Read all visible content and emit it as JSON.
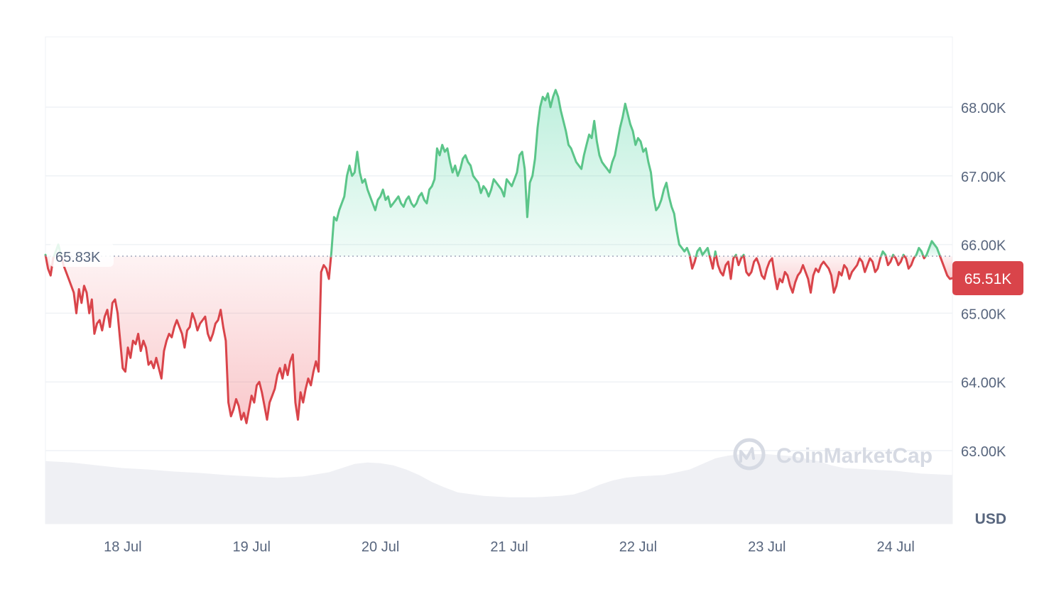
{
  "chart_data": {
    "type": "area",
    "currency_label": "USD",
    "watermark": "CoinMarketCap",
    "x_labels": [
      "18 Jul",
      "19 Jul",
      "20 Jul",
      "21 Jul",
      "22 Jul",
      "23 Jul",
      "24 Jul"
    ],
    "x_label_day_offsets": [
      0.6,
      1.6,
      2.6,
      3.6,
      4.6,
      5.6,
      6.6
    ],
    "y_ticks": [
      63000,
      64000,
      65000,
      66000,
      67000,
      68000
    ],
    "y_tick_labels": [
      "63.00K",
      "64.00K",
      "65.00K",
      "66.00K",
      "67.00K",
      "68.00K"
    ],
    "ylim": [
      62000,
      69000
    ],
    "x_range_days": [
      0,
      7.04
    ],
    "reference": {
      "value": 65830,
      "label": "65.83K"
    },
    "current": {
      "value": 65510,
      "label": "65.51K"
    },
    "colors": {
      "up": "#16c784",
      "up_line": "#5bc589",
      "down": "#ea3943",
      "down_line": "#d9444a",
      "grid": "#eff2f5",
      "volume": "#eff0f4",
      "price_tag": "#d9444a"
    },
    "price_series": [
      [
        0.0,
        65850
      ],
      [
        0.02,
        65650
      ],
      [
        0.04,
        65550
      ],
      [
        0.06,
        65800
      ],
      [
        0.1,
        66000
      ],
      [
        0.14,
        65700
      ],
      [
        0.18,
        65500
      ],
      [
        0.22,
        65300
      ],
      [
        0.24,
        65000
      ],
      [
        0.26,
        65350
      ],
      [
        0.28,
        65150
      ],
      [
        0.3,
        65400
      ],
      [
        0.32,
        65300
      ],
      [
        0.34,
        65000
      ],
      [
        0.36,
        65200
      ],
      [
        0.38,
        64700
      ],
      [
        0.4,
        64850
      ],
      [
        0.42,
        64900
      ],
      [
        0.44,
        64750
      ],
      [
        0.46,
        64950
      ],
      [
        0.48,
        65050
      ],
      [
        0.5,
        64800
      ],
      [
        0.52,
        65150
      ],
      [
        0.54,
        65200
      ],
      [
        0.56,
        65000
      ],
      [
        0.58,
        64600
      ],
      [
        0.6,
        64200
      ],
      [
        0.62,
        64150
      ],
      [
        0.64,
        64500
      ],
      [
        0.66,
        64350
      ],
      [
        0.68,
        64600
      ],
      [
        0.7,
        64550
      ],
      [
        0.72,
        64700
      ],
      [
        0.74,
        64450
      ],
      [
        0.76,
        64600
      ],
      [
        0.78,
        64500
      ],
      [
        0.8,
        64250
      ],
      [
        0.82,
        64300
      ],
      [
        0.84,
        64200
      ],
      [
        0.86,
        64350
      ],
      [
        0.88,
        64200
      ],
      [
        0.9,
        64050
      ],
      [
        0.92,
        64450
      ],
      [
        0.94,
        64600
      ],
      [
        0.96,
        64700
      ],
      [
        0.98,
        64650
      ],
      [
        1.0,
        64800
      ],
      [
        1.02,
        64900
      ],
      [
        1.04,
        64800
      ],
      [
        1.06,
        64700
      ],
      [
        1.08,
        64500
      ],
      [
        1.1,
        64750
      ],
      [
        1.12,
        64800
      ],
      [
        1.14,
        65000
      ],
      [
        1.16,
        64900
      ],
      [
        1.18,
        64750
      ],
      [
        1.2,
        64850
      ],
      [
        1.22,
        64900
      ],
      [
        1.24,
        64950
      ],
      [
        1.26,
        64700
      ],
      [
        1.28,
        64600
      ],
      [
        1.3,
        64700
      ],
      [
        1.32,
        64850
      ],
      [
        1.34,
        64900
      ],
      [
        1.36,
        65050
      ],
      [
        1.38,
        64800
      ],
      [
        1.4,
        64600
      ],
      [
        1.42,
        63700
      ],
      [
        1.44,
        63500
      ],
      [
        1.46,
        63600
      ],
      [
        1.48,
        63750
      ],
      [
        1.5,
        63650
      ],
      [
        1.52,
        63450
      ],
      [
        1.54,
        63550
      ],
      [
        1.56,
        63400
      ],
      [
        1.58,
        63600
      ],
      [
        1.6,
        63800
      ],
      [
        1.62,
        63700
      ],
      [
        1.64,
        63950
      ],
      [
        1.66,
        64000
      ],
      [
        1.68,
        63850
      ],
      [
        1.7,
        63650
      ],
      [
        1.72,
        63450
      ],
      [
        1.74,
        63700
      ],
      [
        1.76,
        63800
      ],
      [
        1.78,
        63900
      ],
      [
        1.8,
        64100
      ],
      [
        1.82,
        64200
      ],
      [
        1.84,
        64050
      ],
      [
        1.86,
        64250
      ],
      [
        1.88,
        64100
      ],
      [
        1.9,
        64300
      ],
      [
        1.92,
        64400
      ],
      [
        1.94,
        63700
      ],
      [
        1.96,
        63450
      ],
      [
        1.98,
        63850
      ],
      [
        2.0,
        63700
      ],
      [
        2.02,
        63900
      ],
      [
        2.04,
        64050
      ],
      [
        2.06,
        63950
      ],
      [
        2.08,
        64150
      ],
      [
        2.1,
        64300
      ],
      [
        2.12,
        64150
      ],
      [
        2.14,
        65600
      ],
      [
        2.16,
        65700
      ],
      [
        2.18,
        65650
      ],
      [
        2.2,
        65500
      ],
      [
        2.22,
        65900
      ],
      [
        2.24,
        66400
      ],
      [
        2.26,
        66350
      ],
      [
        2.28,
        66500
      ],
      [
        2.3,
        66600
      ],
      [
        2.32,
        66700
      ],
      [
        2.34,
        67000
      ],
      [
        2.36,
        67150
      ],
      [
        2.38,
        67000
      ],
      [
        2.4,
        67050
      ],
      [
        2.42,
        67350
      ],
      [
        2.44,
        67050
      ],
      [
        2.46,
        66900
      ],
      [
        2.48,
        66950
      ],
      [
        2.5,
        66800
      ],
      [
        2.52,
        66700
      ],
      [
        2.54,
        66600
      ],
      [
        2.56,
        66500
      ],
      [
        2.58,
        66650
      ],
      [
        2.6,
        66700
      ],
      [
        2.62,
        66800
      ],
      [
        2.64,
        66650
      ],
      [
        2.66,
        66700
      ],
      [
        2.68,
        66550
      ],
      [
        2.7,
        66600
      ],
      [
        2.72,
        66650
      ],
      [
        2.74,
        66700
      ],
      [
        2.76,
        66600
      ],
      [
        2.78,
        66550
      ],
      [
        2.8,
        66650
      ],
      [
        2.82,
        66700
      ],
      [
        2.84,
        66600
      ],
      [
        2.86,
        66550
      ],
      [
        2.88,
        66600
      ],
      [
        2.9,
        66700
      ],
      [
        2.92,
        66750
      ],
      [
        2.94,
        66650
      ],
      [
        2.96,
        66600
      ],
      [
        2.98,
        66800
      ],
      [
        3.0,
        66850
      ],
      [
        3.02,
        66950
      ],
      [
        3.04,
        67400
      ],
      [
        3.06,
        67300
      ],
      [
        3.08,
        67450
      ],
      [
        3.1,
        67350
      ],
      [
        3.12,
        67400
      ],
      [
        3.14,
        67200
      ],
      [
        3.16,
        67050
      ],
      [
        3.18,
        67150
      ],
      [
        3.2,
        67000
      ],
      [
        3.22,
        67100
      ],
      [
        3.24,
        67250
      ],
      [
        3.26,
        67300
      ],
      [
        3.28,
        67200
      ],
      [
        3.3,
        67150
      ],
      [
        3.32,
        67000
      ],
      [
        3.34,
        66950
      ],
      [
        3.36,
        66900
      ],
      [
        3.38,
        66750
      ],
      [
        3.4,
        66850
      ],
      [
        3.42,
        66800
      ],
      [
        3.44,
        66700
      ],
      [
        3.46,
        66800
      ],
      [
        3.48,
        66950
      ],
      [
        3.5,
        66900
      ],
      [
        3.52,
        66850
      ],
      [
        3.54,
        66800
      ],
      [
        3.56,
        66700
      ],
      [
        3.58,
        66950
      ],
      [
        3.6,
        66900
      ],
      [
        3.62,
        66850
      ],
      [
        3.64,
        66950
      ],
      [
        3.66,
        67050
      ],
      [
        3.68,
        67300
      ],
      [
        3.7,
        67350
      ],
      [
        3.72,
        67100
      ],
      [
        3.74,
        66400
      ],
      [
        3.76,
        66900
      ],
      [
        3.78,
        67000
      ],
      [
        3.8,
        67250
      ],
      [
        3.82,
        67700
      ],
      [
        3.84,
        68000
      ],
      [
        3.86,
        68150
      ],
      [
        3.88,
        68100
      ],
      [
        3.9,
        68200
      ],
      [
        3.92,
        68000
      ],
      [
        3.94,
        68150
      ],
      [
        3.96,
        68250
      ],
      [
        3.98,
        68150
      ],
      [
        4.0,
        67950
      ],
      [
        4.02,
        67800
      ],
      [
        4.04,
        67650
      ],
      [
        4.06,
        67450
      ],
      [
        4.08,
        67400
      ],
      [
        4.1,
        67300
      ],
      [
        4.12,
        67200
      ],
      [
        4.14,
        67150
      ],
      [
        4.16,
        67100
      ],
      [
        4.18,
        67300
      ],
      [
        4.2,
        67450
      ],
      [
        4.22,
        67600
      ],
      [
        4.24,
        67550
      ],
      [
        4.26,
        67800
      ],
      [
        4.28,
        67500
      ],
      [
        4.3,
        67300
      ],
      [
        4.32,
        67200
      ],
      [
        4.34,
        67150
      ],
      [
        4.36,
        67100
      ],
      [
        4.38,
        67050
      ],
      [
        4.4,
        67200
      ],
      [
        4.42,
        67300
      ],
      [
        4.44,
        67500
      ],
      [
        4.46,
        67700
      ],
      [
        4.48,
        67850
      ],
      [
        4.5,
        68050
      ],
      [
        4.52,
        67900
      ],
      [
        4.54,
        67750
      ],
      [
        4.56,
        67650
      ],
      [
        4.58,
        67450
      ],
      [
        4.6,
        67550
      ],
      [
        4.62,
        67500
      ],
      [
        4.64,
        67350
      ],
      [
        4.66,
        67400
      ],
      [
        4.68,
        67200
      ],
      [
        4.7,
        67050
      ],
      [
        4.72,
        66700
      ],
      [
        4.74,
        66500
      ],
      [
        4.76,
        66550
      ],
      [
        4.78,
        66650
      ],
      [
        4.8,
        66800
      ],
      [
        4.82,
        66900
      ],
      [
        4.84,
        66700
      ],
      [
        4.86,
        66550
      ],
      [
        4.88,
        66450
      ],
      [
        4.9,
        66200
      ],
      [
        4.92,
        66000
      ],
      [
        4.94,
        65950
      ],
      [
        4.96,
        65900
      ],
      [
        4.98,
        65950
      ],
      [
        5.0,
        65850
      ],
      [
        5.02,
        65650
      ],
      [
        5.04,
        65750
      ],
      [
        5.06,
        65900
      ],
      [
        5.08,
        65950
      ],
      [
        5.1,
        65850
      ],
      [
        5.12,
        65900
      ],
      [
        5.14,
        65950
      ],
      [
        5.16,
        65800
      ],
      [
        5.18,
        65650
      ],
      [
        5.2,
        65900
      ],
      [
        5.22,
        65700
      ],
      [
        5.24,
        65600
      ],
      [
        5.26,
        65550
      ],
      [
        5.28,
        65700
      ],
      [
        5.3,
        65750
      ],
      [
        5.32,
        65500
      ],
      [
        5.34,
        65800
      ],
      [
        5.36,
        65850
      ],
      [
        5.38,
        65700
      ],
      [
        5.4,
        65800
      ],
      [
        5.42,
        65850
      ],
      [
        5.44,
        65600
      ],
      [
        5.46,
        65550
      ],
      [
        5.48,
        65600
      ],
      [
        5.5,
        65750
      ],
      [
        5.52,
        65800
      ],
      [
        5.54,
        65700
      ],
      [
        5.56,
        65550
      ],
      [
        5.58,
        65500
      ],
      [
        5.6,
        65650
      ],
      [
        5.62,
        65750
      ],
      [
        5.64,
        65800
      ],
      [
        5.66,
        65550
      ],
      [
        5.68,
        65350
      ],
      [
        5.7,
        65500
      ],
      [
        5.72,
        65450
      ],
      [
        5.74,
        65600
      ],
      [
        5.76,
        65550
      ],
      [
        5.78,
        65400
      ],
      [
        5.8,
        65300
      ],
      [
        5.82,
        65450
      ],
      [
        5.84,
        65550
      ],
      [
        5.86,
        65600
      ],
      [
        5.88,
        65700
      ],
      [
        5.9,
        65600
      ],
      [
        5.92,
        65500
      ],
      [
        5.94,
        65300
      ],
      [
        5.96,
        65550
      ],
      [
        5.98,
        65650
      ],
      [
        6.0,
        65600
      ],
      [
        6.02,
        65700
      ],
      [
        6.04,
        65750
      ],
      [
        6.06,
        65700
      ],
      [
        6.08,
        65650
      ],
      [
        6.1,
        65550
      ],
      [
        6.12,
        65300
      ],
      [
        6.14,
        65400
      ],
      [
        6.16,
        65600
      ],
      [
        6.18,
        65550
      ],
      [
        6.2,
        65700
      ],
      [
        6.22,
        65650
      ],
      [
        6.24,
        65500
      ],
      [
        6.26,
        65600
      ],
      [
        6.28,
        65650
      ],
      [
        6.3,
        65700
      ],
      [
        6.32,
        65800
      ],
      [
        6.34,
        65750
      ],
      [
        6.36,
        65600
      ],
      [
        6.38,
        65700
      ],
      [
        6.4,
        65800
      ],
      [
        6.42,
        65750
      ],
      [
        6.44,
        65600
      ],
      [
        6.46,
        65650
      ],
      [
        6.48,
        65800
      ],
      [
        6.5,
        65900
      ],
      [
        6.52,
        65850
      ],
      [
        6.54,
        65700
      ],
      [
        6.56,
        65750
      ],
      [
        6.58,
        65850
      ],
      [
        6.6,
        65800
      ],
      [
        6.62,
        65700
      ],
      [
        6.64,
        65750
      ],
      [
        6.66,
        65850
      ],
      [
        6.68,
        65800
      ],
      [
        6.7,
        65650
      ],
      [
        6.72,
        65700
      ],
      [
        6.74,
        65800
      ],
      [
        6.76,
        65850
      ],
      [
        6.78,
        65950
      ],
      [
        6.8,
        65900
      ],
      [
        6.82,
        65800
      ],
      [
        6.84,
        65850
      ],
      [
        6.86,
        65950
      ],
      [
        6.88,
        66050
      ],
      [
        6.9,
        66000
      ],
      [
        6.92,
        65950
      ],
      [
        6.94,
        65850
      ],
      [
        6.96,
        65750
      ],
      [
        6.98,
        65650
      ],
      [
        7.0,
        65550
      ],
      [
        7.02,
        65500
      ],
      [
        7.04,
        65510
      ]
    ],
    "volume_levels": [
      [
        0.0,
        0.9
      ],
      [
        0.2,
        0.88
      ],
      [
        0.4,
        0.84
      ],
      [
        0.6,
        0.8
      ],
      [
        0.8,
        0.78
      ],
      [
        1.0,
        0.75
      ],
      [
        1.2,
        0.73
      ],
      [
        1.4,
        0.7
      ],
      [
        1.6,
        0.68
      ],
      [
        1.8,
        0.66
      ],
      [
        2.0,
        0.68
      ],
      [
        2.2,
        0.74
      ],
      [
        2.3,
        0.8
      ],
      [
        2.4,
        0.86
      ],
      [
        2.5,
        0.88
      ],
      [
        2.6,
        0.87
      ],
      [
        2.7,
        0.84
      ],
      [
        2.8,
        0.78
      ],
      [
        2.9,
        0.7
      ],
      [
        3.0,
        0.6
      ],
      [
        3.1,
        0.52
      ],
      [
        3.2,
        0.45
      ],
      [
        3.4,
        0.4
      ],
      [
        3.6,
        0.38
      ],
      [
        3.8,
        0.38
      ],
      [
        4.0,
        0.4
      ],
      [
        4.1,
        0.42
      ],
      [
        4.2,
        0.48
      ],
      [
        4.3,
        0.56
      ],
      [
        4.4,
        0.62
      ],
      [
        4.5,
        0.66
      ],
      [
        4.6,
        0.68
      ],
      [
        4.8,
        0.7
      ],
      [
        5.0,
        0.78
      ],
      [
        5.1,
        0.86
      ],
      [
        5.2,
        0.94
      ],
      [
        5.3,
        0.98
      ],
      [
        5.4,
        1.0
      ],
      [
        5.6,
        1.0
      ],
      [
        5.8,
        0.97
      ],
      [
        6.0,
        0.9
      ],
      [
        6.1,
        0.84
      ],
      [
        6.2,
        0.8
      ],
      [
        6.4,
        0.78
      ],
      [
        6.6,
        0.76
      ],
      [
        6.8,
        0.72
      ],
      [
        7.04,
        0.7
      ]
    ]
  }
}
